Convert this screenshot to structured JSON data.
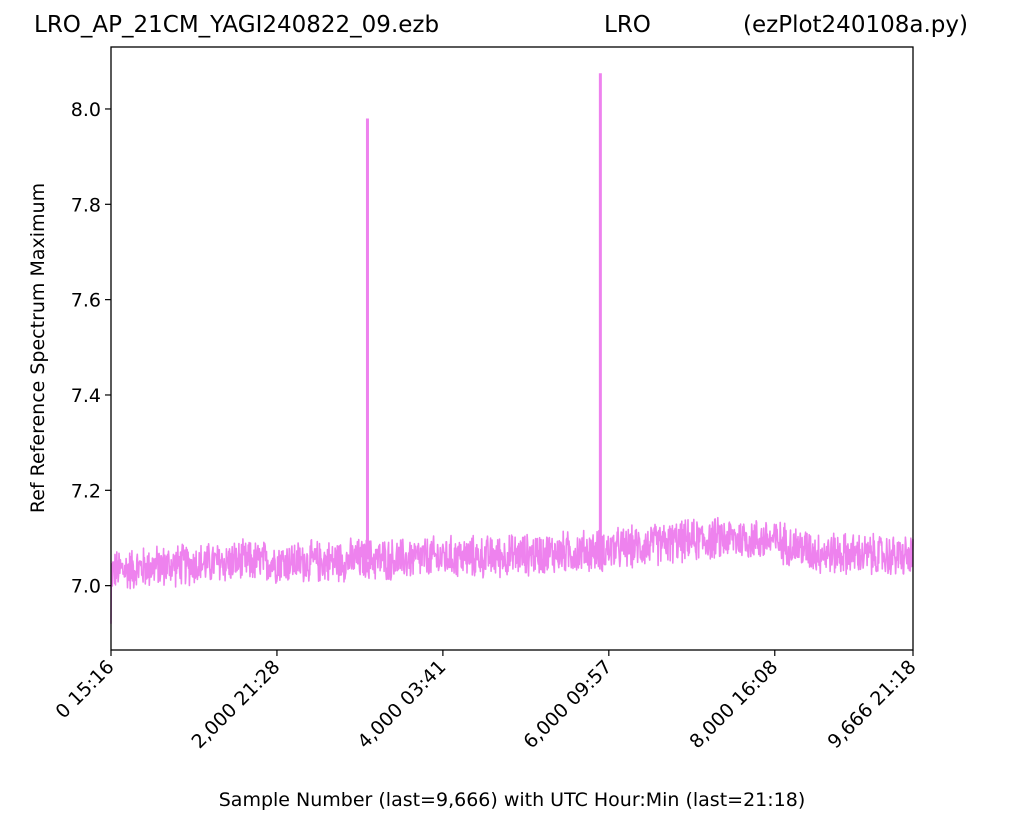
{
  "header": {
    "file": "LRO_AP_21CM_YAGI240822_09.ezb",
    "station": "LRO",
    "script": "(ezPlot240108a.py)"
  },
  "chart_data": {
    "type": "line",
    "title": "",
    "xlabel": "Sample Number (last=9,666) with UTC Hour:Min (last=21:18)",
    "ylabel": "Ref Reference Spectrum Maximum",
    "xlim": [
      0,
      9666
    ],
    "ylim": [
      6.865,
      8.13
    ],
    "grid": false,
    "line_color": "#ee82ee",
    "x_ticks": [
      {
        "value": 0,
        "label": "0  15:16"
      },
      {
        "value": 2000,
        "label": "2,000  21:28"
      },
      {
        "value": 4000,
        "label": "4,000  03:41"
      },
      {
        "value": 6000,
        "label": "6,000  09:57"
      },
      {
        "value": 8000,
        "label": "8,000  16:08"
      },
      {
        "value": 9666,
        "label": "9,666  21:18"
      }
    ],
    "y_ticks": [
      {
        "value": 7.0,
        "label": "7.0"
      },
      {
        "value": 7.2,
        "label": "7.2"
      },
      {
        "value": 7.4,
        "label": "7.4"
      },
      {
        "value": 7.6,
        "label": "7.6"
      },
      {
        "value": 7.8,
        "label": "7.8"
      },
      {
        "value": 8.0,
        "label": "8.0"
      }
    ],
    "series": [
      {
        "baseline": [
          [
            0,
            7.03
          ],
          [
            500,
            7.04
          ],
          [
            1000,
            7.045
          ],
          [
            1500,
            7.05
          ],
          [
            2000,
            7.05
          ],
          [
            2500,
            7.05
          ],
          [
            3000,
            7.055
          ],
          [
            3500,
            7.055
          ],
          [
            4000,
            7.06
          ],
          [
            4500,
            7.06
          ],
          [
            5000,
            7.065
          ],
          [
            5500,
            7.07
          ],
          [
            6000,
            7.075
          ],
          [
            6500,
            7.085
          ],
          [
            7000,
            7.095
          ],
          [
            7500,
            7.1
          ],
          [
            8000,
            7.095
          ],
          [
            8500,
            7.07
          ],
          [
            9000,
            7.065
          ],
          [
            9666,
            7.06
          ]
        ],
        "noise_band": 0.05,
        "spikes": [
          {
            "x": 3091,
            "y": 7.98
          },
          {
            "x": 5898,
            "y": 8.075
          }
        ]
      }
    ]
  }
}
